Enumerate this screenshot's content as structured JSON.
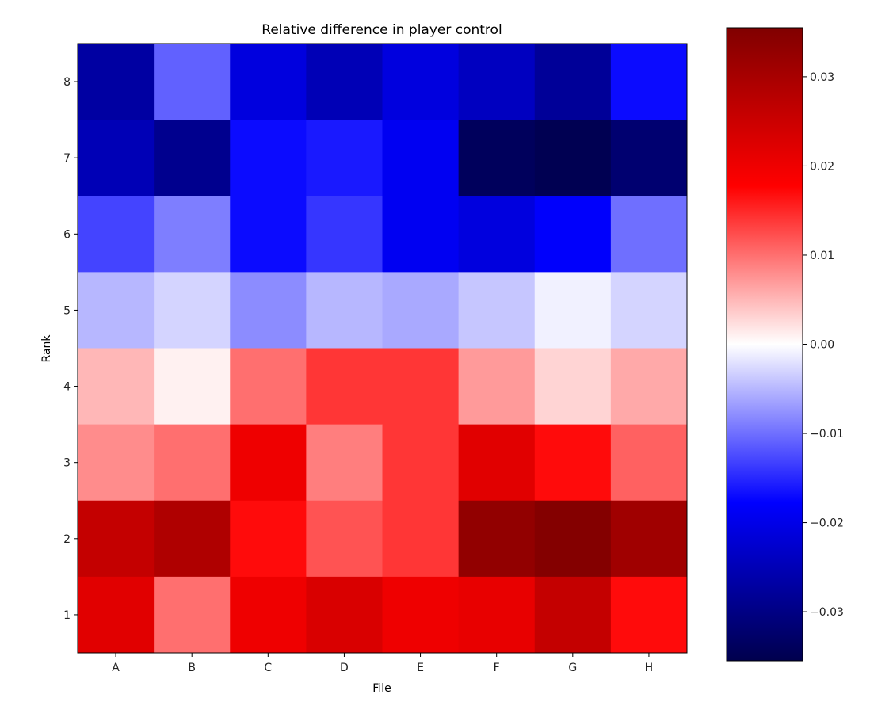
{
  "chart_data": {
    "type": "heatmap",
    "title": "Relative difference in player control",
    "xlabel": "File",
    "ylabel": "Rank",
    "x_categories": [
      "A",
      "B",
      "C",
      "D",
      "E",
      "F",
      "G",
      "H"
    ],
    "y_categories": [
      "8",
      "7",
      "6",
      "5",
      "4",
      "3",
      "2",
      "1"
    ],
    "values": [
      [
        -0.027,
        -0.011,
        -0.021,
        -0.025,
        -0.021,
        -0.024,
        -0.028,
        -0.017
      ],
      [
        -0.025,
        -0.029,
        -0.017,
        -0.016,
        -0.019,
        -0.034,
        -0.035,
        -0.032
      ],
      [
        -0.013,
        -0.009,
        -0.017,
        -0.014,
        -0.019,
        -0.021,
        -0.018,
        -0.01
      ],
      [
        -0.005,
        -0.003,
        -0.008,
        -0.005,
        -0.006,
        -0.004,
        -0.001,
        -0.003
      ],
      [
        0.005,
        0.001,
        0.01,
        0.014,
        0.014,
        0.007,
        0.003,
        0.006
      ],
      [
        0.008,
        0.01,
        0.02,
        0.009,
        0.014,
        0.022,
        0.017,
        0.011
      ],
      [
        0.026,
        0.029,
        0.017,
        0.012,
        0.014,
        0.033,
        0.035,
        0.031
      ],
      [
        0.022,
        0.01,
        0.02,
        0.023,
        0.02,
        0.021,
        0.026,
        0.017
      ]
    ],
    "colormap": "seismic",
    "color_range": [
      -0.0355,
      0.0355
    ],
    "colorbar_ticks": [
      {
        "value": 0.03,
        "label": "0.03"
      },
      {
        "value": 0.02,
        "label": "0.02"
      },
      {
        "value": 0.01,
        "label": "0.01"
      },
      {
        "value": 0.0,
        "label": "0.00"
      },
      {
        "value": -0.01,
        "label": "−0.01"
      },
      {
        "value": -0.02,
        "label": "−0.02"
      },
      {
        "value": -0.03,
        "label": "−0.03"
      }
    ],
    "colorbar_placement": "right",
    "grid": false
  }
}
